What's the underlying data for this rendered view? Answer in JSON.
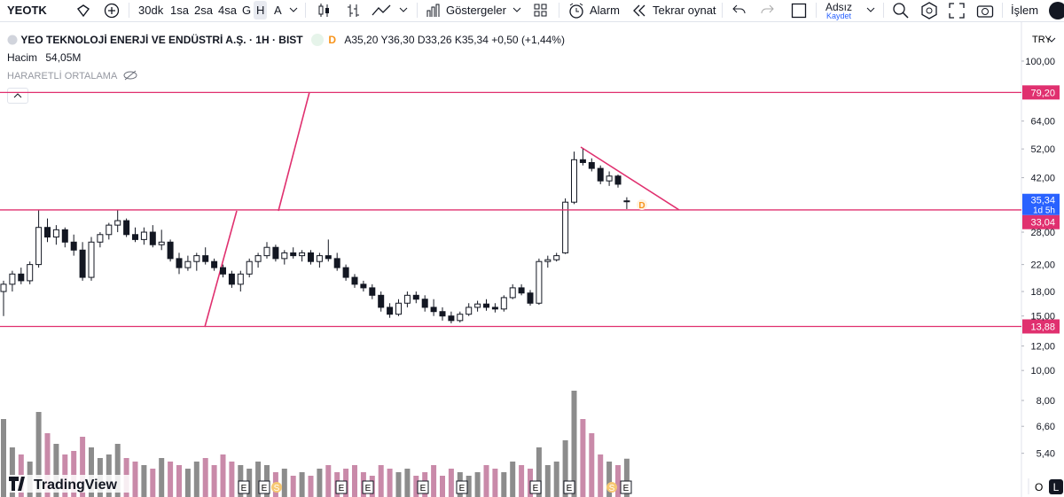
{
  "toolbar": {
    "symbol": "YEOTK",
    "intervals": [
      "30dk",
      "1sa",
      "2sa",
      "4sa",
      "G",
      "H",
      "A"
    ],
    "indicators": "Göstergeler",
    "alert": "Alarm",
    "replay": "Tekrar oynat",
    "layout_name": "Adsız",
    "layout_save": "Kaydet",
    "trade": "İşlem"
  },
  "header": {
    "title": "YEO TEKNOLOJİ ENERJİ VE ENDÜSTRİ A.Ş. · 1H · BIST",
    "badge": "D",
    "ohlc": "A35,20 Y36,30 D33,26 K35,34 +0,50 (+1,44%)",
    "volume_label": "Hacim",
    "volume_value": "54,05M",
    "indicator": "HARARETLİ ORTALAMA"
  },
  "chart_data": {
    "type": "candlestick",
    "currency": "TRY",
    "y_scale": "log",
    "ylim": [
      3.9,
      129.3
    ],
    "yticks": [
      {
        "value": 100,
        "label": "100,00"
      },
      {
        "value": 64,
        "label": "64,00"
      },
      {
        "value": 52,
        "label": "52,00"
      },
      {
        "value": 42,
        "label": "42,00"
      },
      {
        "value": 28,
        "label": "28,00"
      },
      {
        "value": 22,
        "label": "22,00"
      },
      {
        "value": 18,
        "label": "18,00"
      },
      {
        "value": 15,
        "label": "15,00"
      },
      {
        "value": 12,
        "label": "12,00"
      },
      {
        "value": 10,
        "label": "10,00"
      },
      {
        "value": 8,
        "label": "8,00"
      },
      {
        "value": 6.6,
        "label": "6,60"
      },
      {
        "value": 5.4,
        "label": "5,40"
      }
    ],
    "price_lines": [
      {
        "value": 79.2,
        "label": "79,20"
      },
      {
        "value": 33.04,
        "label": "33,04"
      },
      {
        "value": 13.88,
        "label": "13,88"
      }
    ],
    "line_color": "#e0306f",
    "current_price": {
      "value": 35.34,
      "label": "35,34",
      "countdown": "1d 5h",
      "color": "#2962ff"
    },
    "up_color": "#ffffff",
    "down_color": "#131722",
    "volume_up_color": "#8c8c8c",
    "volume_down_color": "#c98aa9",
    "candles": [
      [
        18,
        19.5,
        15,
        19
      ],
      [
        19,
        21,
        18,
        20.5
      ],
      [
        20.5,
        21.5,
        19,
        19.5
      ],
      [
        19.5,
        22.5,
        19,
        22
      ],
      [
        22,
        33,
        21.5,
        29
      ],
      [
        29,
        31,
        26,
        27
      ],
      [
        27,
        29.5,
        25.5,
        28.5
      ],
      [
        28.5,
        29,
        25,
        26
      ],
      [
        26,
        27.5,
        23.5,
        24.5
      ],
      [
        24.5,
        26,
        19.5,
        20
      ],
      [
        20,
        27,
        19.5,
        26
      ],
      [
        26,
        28,
        25,
        27.5
      ],
      [
        27.5,
        30,
        26.5,
        29.5
      ],
      [
        29.5,
        33,
        28,
        30.5
      ],
      [
        30.5,
        31,
        27,
        27.5
      ],
      [
        27.5,
        29,
        26,
        26.5
      ],
      [
        26.5,
        29,
        25.5,
        28
      ],
      [
        28,
        29.5,
        25,
        25.5
      ],
      [
        25.5,
        28.5,
        24.5,
        26
      ],
      [
        26,
        26.5,
        22.5,
        23
      ],
      [
        23,
        24,
        20.5,
        21.5
      ],
      [
        21.5,
        23.5,
        21,
        22.5
      ],
      [
        22.5,
        24,
        21,
        23.5
      ],
      [
        23.5,
        25,
        22,
        22.5
      ],
      [
        22.5,
        23,
        21,
        21.5
      ],
      [
        21.5,
        22,
        20,
        20.5
      ],
      [
        20.5,
        21,
        18.5,
        19
      ],
      [
        19,
        21,
        18,
        20.5
      ],
      [
        20.5,
        23,
        20,
        22.5
      ],
      [
        22.5,
        24,
        21.5,
        23.5
      ],
      [
        23.5,
        26,
        23,
        25
      ],
      [
        25,
        25.5,
        22.5,
        23
      ],
      [
        23,
        24.5,
        22,
        24
      ],
      [
        24,
        25,
        23,
        23.5
      ],
      [
        23.5,
        24.5,
        22.5,
        24
      ],
      [
        24,
        24.5,
        22,
        22.5
      ],
      [
        22.5,
        24,
        21.5,
        23.5
      ],
      [
        23.5,
        26.5,
        22.5,
        23
      ],
      [
        23,
        24,
        21,
        21.5
      ],
      [
        21.5,
        22,
        19.5,
        20
      ],
      [
        20,
        20.5,
        18.5,
        19
      ],
      [
        19,
        19.5,
        18,
        18.5
      ],
      [
        18.5,
        19,
        17,
        17.5
      ],
      [
        17.5,
        18,
        15.5,
        16
      ],
      [
        16,
        16.5,
        14.8,
        15.2
      ],
      [
        15.2,
        17,
        15,
        16.5
      ],
      [
        16.5,
        18,
        16,
        17.5
      ],
      [
        17.5,
        18,
        16.5,
        17
      ],
      [
        17,
        17.5,
        15.5,
        16
      ],
      [
        16,
        17,
        15,
        15.5
      ],
      [
        15.5,
        16,
        14.5,
        15
      ],
      [
        15,
        15.5,
        14.2,
        14.5
      ],
      [
        14.5,
        15.5,
        14.3,
        15.2
      ],
      [
        15.2,
        16.5,
        15,
        16
      ],
      [
        16,
        16.8,
        15.5,
        16.4
      ],
      [
        16.4,
        17,
        15.6,
        16
      ],
      [
        16,
        16.5,
        15.4,
        15.8
      ],
      [
        15.8,
        17.5,
        15.5,
        17.2
      ],
      [
        17.2,
        19,
        17,
        18.5
      ],
      [
        18.5,
        19,
        17.5,
        17.8
      ],
      [
        17.8,
        18.2,
        16.2,
        16.5
      ],
      [
        16.5,
        23,
        16.3,
        22.5
      ],
      [
        22.5,
        23.5,
        21.5,
        22.8
      ],
      [
        22.8,
        24,
        22.5,
        23.5
      ],
      [
        24,
        36,
        23.8,
        35
      ],
      [
        35,
        51,
        34.5,
        48
      ],
      [
        48,
        52,
        46,
        47
      ],
      [
        47,
        48.5,
        44,
        45
      ],
      [
        45,
        46,
        40,
        41
      ],
      [
        41,
        44,
        39.5,
        42.5
      ],
      [
        42.5,
        43,
        39,
        40
      ],
      [
        35.2,
        36.3,
        33.26,
        35.34
      ]
    ],
    "volumes": [
      110,
      70,
      60,
      50,
      120,
      90,
      75,
      60,
      65,
      85,
      70,
      55,
      60,
      75,
      55,
      50,
      45,
      40,
      55,
      50,
      45,
      40,
      50,
      55,
      45,
      60,
      50,
      45,
      40,
      50,
      45,
      35,
      40,
      30,
      35,
      30,
      40,
      45,
      35,
      40,
      45,
      35,
      30,
      45,
      40,
      35,
      40,
      30,
      35,
      45,
      30,
      40,
      35,
      30,
      35,
      45,
      40,
      35,
      50,
      45,
      40,
      70,
      45,
      50,
      80,
      150,
      110,
      90,
      60,
      50,
      45,
      54.05
    ]
  },
  "events": [
    "E",
    "E",
    "S",
    "E",
    "E",
    "E",
    "E",
    "E",
    "E",
    "S",
    "E"
  ],
  "footer": {
    "logo": "TradingView",
    "scale_o": "O",
    "scale_l": "L"
  }
}
